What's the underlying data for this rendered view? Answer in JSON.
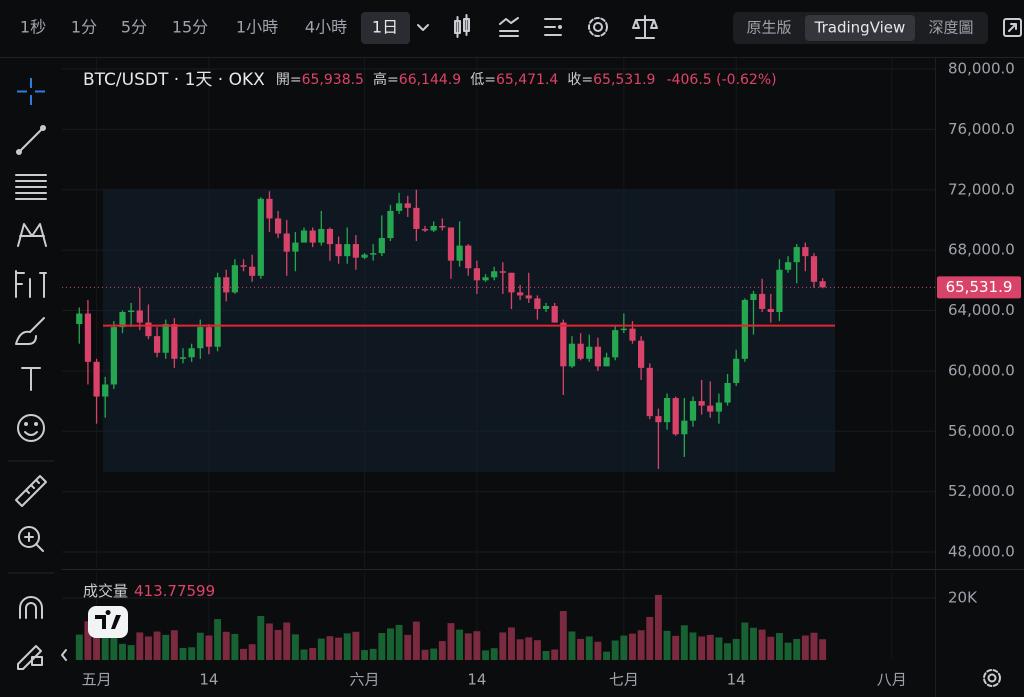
{
  "toolbar": {
    "intervals": [
      "1秒",
      "1分",
      "5分",
      "15分",
      "1小時",
      "4小時",
      "1日"
    ],
    "views": [
      "原生版",
      "TradingView",
      "深度圖"
    ]
  },
  "header": {
    "symbol": "BTC/USDT · 1天 · OKX",
    "open_label": "開=",
    "open": "65,938.5",
    "high_label": "高=",
    "high": "66,144.9",
    "low_label": "低=",
    "low": "65,471.4",
    "close_label": "收=",
    "close": "65,531.9",
    "change": "-406.5 (-0.62%)"
  },
  "volume_panel": {
    "title": "成交量",
    "value": "413.77599"
  },
  "chart_data": {
    "type": "candlestick",
    "up_color": "#25a750",
    "down_color": "#d9436a",
    "grid": true,
    "open": [
      63100,
      63800,
      60600,
      58300,
      59100,
      62900,
      63900,
      64000,
      63200,
      62300,
      61200,
      63100,
      60800,
      60900,
      61500,
      62900,
      61600,
      66200,
      65200,
      67000,
      66900,
      66300,
      71400,
      70100,
      69100,
      67900,
      68500,
      69300,
      68500,
      69400,
      68400,
      67600,
      68400,
      67500,
      67700,
      67800,
      68800,
      70600,
      71100,
      70800,
      69400,
      69300,
      69600,
      69500,
      67300,
      68300,
      66800,
      66000,
      66200,
      66600,
      66500,
      65200,
      65000,
      64800,
      64100,
      64300,
      63200,
      60300,
      61800,
      60800,
      61600,
      60300,
      60900,
      62700,
      62800,
      62000,
      60200,
      57000,
      56600,
      58200,
      55800,
      56700,
      58000,
      57700,
      57300,
      57900,
      59200,
      60800,
      64700,
      65100,
      64100,
      63900,
      66700,
      67200,
      68200,
      67600,
      65938.5
    ],
    "high": [
      64200,
      64700,
      60800,
      59600,
      63300,
      64000,
      64500,
      65500,
      64400,
      62900,
      63400,
      63500,
      61500,
      61800,
      63400,
      63100,
      66500,
      66700,
      67400,
      67400,
      67700,
      71500,
      71900,
      70600,
      70000,
      69200,
      69500,
      69500,
      70600,
      69500,
      68900,
      69500,
      69000,
      67800,
      68400,
      70300,
      71000,
      71800,
      71600,
      72000,
      69600,
      69900,
      70100,
      69500,
      69900,
      68400,
      67300,
      66400,
      66900,
      67200,
      66500,
      65700,
      66500,
      65000,
      64500,
      64500,
      63400,
      62300,
      62500,
      62400,
      62200,
      61200,
      63000,
      63800,
      63300,
      62300,
      60500,
      57500,
      58500,
      58300,
      58200,
      58300,
      59400,
      59300,
      58500,
      59800,
      61400,
      64800,
      65300,
      66100,
      65100,
      67400,
      67600,
      68400,
      68500,
      67800,
      66144.9
    ],
    "low": [
      61800,
      59100,
      56500,
      56900,
      58800,
      62500,
      62900,
      62700,
      62100,
      60900,
      60800,
      60200,
      60500,
      60600,
      60800,
      61100,
      61300,
      64600,
      65100,
      66600,
      65900,
      66100,
      69200,
      68800,
      66300,
      66600,
      68500,
      68200,
      68300,
      67300,
      67100,
      67100,
      66700,
      67400,
      67300,
      67600,
      68600,
      70400,
      70200,
      68600,
      69200,
      69200,
      69300,
      66100,
      66900,
      66300,
      65100,
      65900,
      66000,
      65100,
      64100,
      64700,
      64500,
      63400,
      63900,
      63200,
      58400,
      60200,
      60700,
      60600,
      60000,
      60300,
      60700,
      62500,
      61800,
      59400,
      56800,
      53500,
      56100,
      55700,
      54300,
      56300,
      57100,
      56900,
      56500,
      57700,
      59000,
      60600,
      62400,
      63900,
      63200,
      63300,
      66500,
      65800,
      66600,
      65500,
      65471.4
    ],
    "close": [
      63800,
      60600,
      58300,
      59100,
      62900,
      63900,
      64000,
      63200,
      62300,
      61200,
      63100,
      60800,
      60900,
      61500,
      62900,
      61600,
      66200,
      65200,
      67000,
      66900,
      66300,
      71400,
      70100,
      69100,
      67900,
      68500,
      69300,
      68500,
      69400,
      68400,
      67600,
      68400,
      67500,
      67700,
      67800,
      68800,
      70600,
      71100,
      70800,
      69400,
      69300,
      69600,
      69500,
      67300,
      68300,
      66800,
      66000,
      66200,
      66600,
      66500,
      65200,
      65000,
      64800,
      64100,
      64300,
      63200,
      60300,
      61800,
      60800,
      61600,
      60300,
      60900,
      62700,
      62800,
      62000,
      60200,
      57000,
      56600,
      58200,
      55800,
      56700,
      58000,
      57700,
      57300,
      57900,
      59200,
      60800,
      64700,
      65100,
      64100,
      63900,
      66700,
      67200,
      68200,
      67600,
      65900,
      65531.9
    ],
    "volume": [
      8200,
      12500,
      14000,
      9800,
      11000,
      5200,
      4800,
      8900,
      7600,
      9200,
      8100,
      9600,
      3900,
      4100,
      8800,
      7900,
      13200,
      9100,
      8400,
      3600,
      5100,
      14200,
      11800,
      9700,
      12100,
      8300,
      3400,
      3900,
      6900,
      7700,
      7200,
      8600,
      9100,
      3200,
      3600,
      8700,
      10200,
      11300,
      8100,
      12400,
      3300,
      3700,
      6100,
      11900,
      9800,
      8600,
      9300,
      3100,
      3800,
      8900,
      10500,
      6700,
      7300,
      6400,
      2900,
      3400,
      15800,
      9200,
      6800,
      7600,
      5900,
      2700,
      6300,
      7900,
      8500,
      9600,
      13900,
      21000,
      9400,
      7800,
      11200,
      8900,
      7600,
      8100,
      7300,
      5400,
      6800,
      12100,
      10400,
      9800,
      7500,
      8700,
      5600,
      6800,
      7900,
      8800,
      6700
    ],
    "poc_price": 63000,
    "poc_color": "#e5262e",
    "ylim": [
      48000,
      80000
    ],
    "yticks": [
      {
        "value": 48000,
        "label": "48,000.0"
      },
      {
        "value": 52000,
        "label": "52,000.0"
      },
      {
        "value": 56000,
        "label": "56,000.0"
      },
      {
        "value": 60000,
        "label": "60,000.0"
      },
      {
        "value": 64000,
        "label": "64,000.0"
      },
      {
        "value": 68000,
        "label": "68,000.0"
      },
      {
        "value": 72000,
        "label": "72,000.0"
      },
      {
        "value": 76000,
        "label": "76,000.0"
      },
      {
        "value": 80000,
        "label": "80,000.0"
      }
    ],
    "vlim": [
      0,
      28400
    ],
    "vticks": [
      {
        "value": 20000,
        "label": "20K"
      }
    ],
    "xlim": [
      -2,
      99
    ],
    "xticks": [
      {
        "value": 2,
        "label": "五月"
      },
      {
        "value": 15,
        "label": "14"
      },
      {
        "value": 33,
        "label": "六月"
      },
      {
        "value": 46,
        "label": "14"
      },
      {
        "value": 63,
        "label": "七月"
      },
      {
        "value": 76,
        "label": "14"
      },
      {
        "value": 94,
        "label": "八月"
      }
    ]
  }
}
